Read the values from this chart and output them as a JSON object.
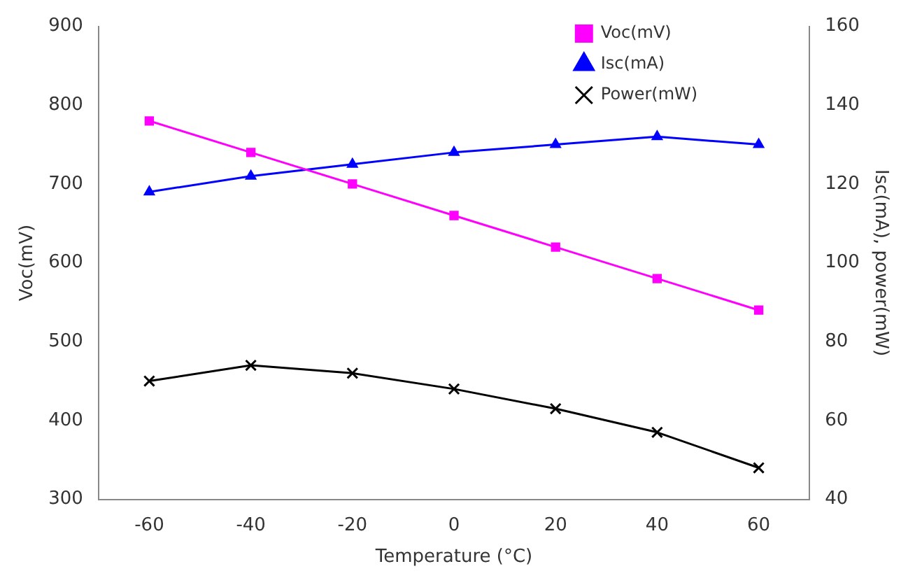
{
  "chart_data": {
    "type": "line",
    "xlabel": "Temperature (°C)",
    "ylabel": "Voc(mV)",
    "y2label": "Isc(mA), power(mW)",
    "x": [
      -60,
      -40,
      -20,
      0,
      20,
      40,
      60
    ],
    "xlim": [
      -70,
      70
    ],
    "xticks": [
      -60,
      -40,
      -20,
      0,
      20,
      40,
      60
    ],
    "ylim": [
      300,
      900
    ],
    "yticks": [
      300,
      400,
      500,
      600,
      700,
      800,
      900
    ],
    "y2lim": [
      40,
      160
    ],
    "y2ticks": [
      40,
      60,
      80,
      100,
      120,
      140,
      160
    ],
    "grid": false,
    "legend": "top right",
    "line_style": "solid",
    "series": [
      {
        "name": "Voc(mV)",
        "color": "#ff00ff",
        "marker": "square",
        "values": [
          780,
          740,
          700,
          660,
          620,
          580,
          540
        ]
      },
      {
        "name": "Isc(mA)",
        "color": "#0000ff",
        "marker": "triangle",
        "axis": "y2",
        "values": [
          118,
          122,
          125,
          128,
          130,
          132,
          130
        ]
      },
      {
        "name": "Power(mW)",
        "color": "#000000",
        "marker": "cross",
        "axis": "y2",
        "values": [
          70,
          74,
          72,
          68,
          63,
          57,
          48
        ]
      }
    ]
  }
}
